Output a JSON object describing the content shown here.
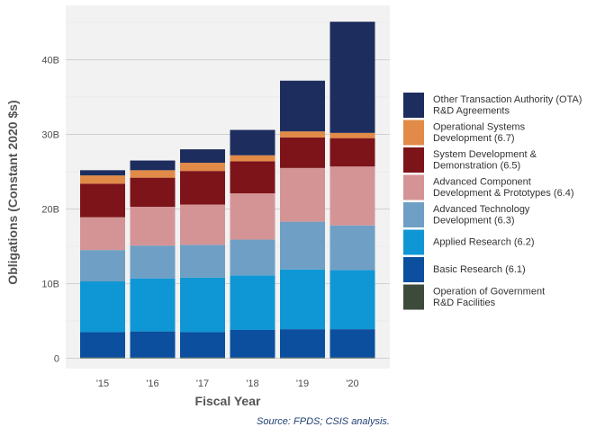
{
  "chart_data": {
    "type": "bar",
    "stacked": true,
    "categories": [
      "'15",
      "'16",
      "'17",
      "'18",
      "'19",
      "'20"
    ],
    "xlabel": "Fiscal Year",
    "ylabel": "Obligations (Constant 2020 $s)",
    "ylim": [
      0,
      46
    ],
    "yticks": [
      {
        "value": 0,
        "label": "0"
      },
      {
        "value": 10,
        "label": "10B"
      },
      {
        "value": 20,
        "label": "20B"
      },
      {
        "value": 30,
        "label": "30B"
      },
      {
        "value": 40,
        "label": "40B"
      }
    ],
    "grid": true,
    "legend_position": "right",
    "source": "Source: FPDS; CSIS analysis.",
    "series": [
      {
        "name": "Operation of Government R&D Facilities",
        "label_lines": [
          "Operation of Government",
          "R&D Facilities"
        ],
        "color": "#3d4b3a",
        "values": [
          0.1,
          0.1,
          0.1,
          0.1,
          0.1,
          0.1
        ]
      },
      {
        "name": "Basic Research (6.1)",
        "label_lines": [
          "Basic Research (6.1)"
        ],
        "color": "#0b4f9e",
        "values": [
          3.4,
          3.5,
          3.4,
          3.7,
          3.8,
          3.8
        ]
      },
      {
        "name": "Applied Research (6.2)",
        "label_lines": [
          "Applied Research (6.2)"
        ],
        "color": "#0f97d5",
        "values": [
          6.8,
          7.1,
          7.3,
          7.3,
          8.0,
          7.9
        ]
      },
      {
        "name": "Advanced Technology Development (6.3)",
        "label_lines": [
          "Advanced Technology",
          "Development (6.3)"
        ],
        "color": "#6f9fc4",
        "values": [
          4.2,
          4.4,
          4.4,
          4.8,
          6.4,
          6.0
        ]
      },
      {
        "name": "Advanced Component Development & Prototypes (6.4)",
        "label_lines": [
          "Advanced Component",
          "Development & Prototypes (6.4)"
        ],
        "color": "#d49495",
        "values": [
          4.4,
          5.2,
          5.4,
          6.2,
          7.2,
          7.9
        ]
      },
      {
        "name": "System Development & Demonstration (6.5)",
        "label_lines": [
          "System Development &",
          "Demonstration (6.5)"
        ],
        "color": "#7c1419",
        "values": [
          4.5,
          3.9,
          4.5,
          4.3,
          4.1,
          3.8
        ]
      },
      {
        "name": "Operational Systems Development (6.7)",
        "label_lines": [
          "Operational Systems",
          "Development (6.7)"
        ],
        "color": "#e28a47",
        "values": [
          1.1,
          1.0,
          1.1,
          0.8,
          0.8,
          0.7
        ]
      },
      {
        "name": "Other Transaction Authority (OTA) R&D Agreements",
        "label_lines": [
          "Other Transaction Authority (OTA)",
          "R&D Agreements"
        ],
        "color": "#1d2d5e",
        "values": [
          0.7,
          1.3,
          1.8,
          3.4,
          6.8,
          14.9
        ]
      }
    ]
  }
}
